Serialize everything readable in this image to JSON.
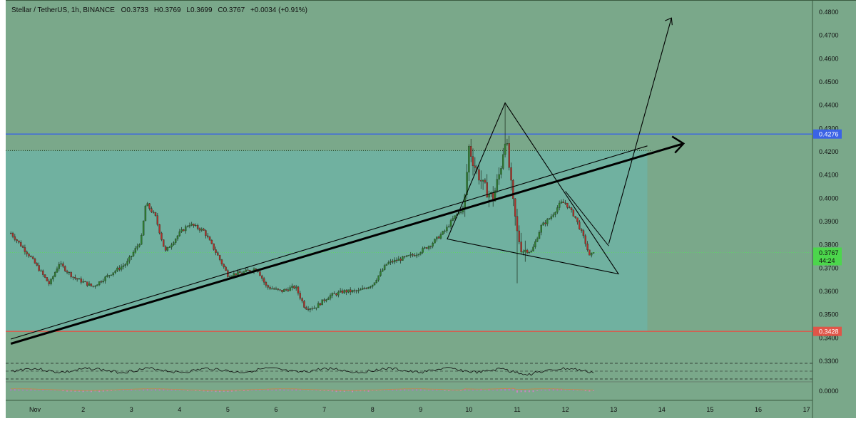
{
  "header": {
    "symbol": "Stellar / TetherUS, 1h, BINANCE",
    "open": "O0.3733",
    "high": "H0.3769",
    "low": "L0.3699",
    "close": "C0.3767",
    "change": "+0.0034 (+0.91%)"
  },
  "colors": {
    "background": "#7aa88a",
    "demand_zone": "#6fb3a3",
    "candle_up": "#2f7d2f",
    "candle_down": "#b0302a",
    "resistance_line": "#3b63e6",
    "support_line": "#e05548",
    "last_price_bg": "#4cd64c",
    "dotted_high": "#1a3a1a",
    "dotted_price": "#5fd36a"
  },
  "chart_data": {
    "type": "candlestick",
    "x_tick_labels": [
      "Nov",
      "2",
      "3",
      "4",
      "5",
      "6",
      "7",
      "8",
      "9",
      "10",
      "11",
      "12",
      "13",
      "14",
      "15",
      "16",
      "17"
    ],
    "x_tick_days": [
      1,
      2,
      3,
      4,
      5,
      6,
      7,
      8,
      9,
      10,
      11,
      12,
      13,
      14,
      15,
      16,
      17
    ],
    "y_tick_labels": [
      "0.4800",
      "0.4700",
      "0.4600",
      "0.4500",
      "0.4400",
      "0.4300",
      "0.4200",
      "0.4100",
      "0.4000",
      "0.3900",
      "0.3800",
      "0.3700",
      "0.3600",
      "0.3500",
      "0.3400",
      "0.3300"
    ],
    "y_range": [
      0.33,
      0.482
    ],
    "x_range_days": [
      0.5,
      17.0
    ],
    "price_path": [
      [
        0.5,
        0.385
      ],
      [
        0.9,
        0.375
      ],
      [
        1.3,
        0.363
      ],
      [
        1.5,
        0.372
      ],
      [
        1.8,
        0.366
      ],
      [
        2.2,
        0.362
      ],
      [
        2.6,
        0.368
      ],
      [
        2.9,
        0.372
      ],
      [
        3.2,
        0.382
      ],
      [
        3.3,
        0.398
      ],
      [
        3.5,
        0.392
      ],
      [
        3.7,
        0.377
      ],
      [
        4.0,
        0.385
      ],
      [
        4.2,
        0.389
      ],
      [
        4.5,
        0.386
      ],
      [
        4.8,
        0.375
      ],
      [
        5.0,
        0.367
      ],
      [
        5.3,
        0.368
      ],
      [
        5.6,
        0.37
      ],
      [
        5.8,
        0.362
      ],
      [
        6.1,
        0.36
      ],
      [
        6.4,
        0.362
      ],
      [
        6.6,
        0.353
      ],
      [
        6.8,
        0.353
      ],
      [
        7.1,
        0.358
      ],
      [
        7.4,
        0.36
      ],
      [
        7.7,
        0.36
      ],
      [
        8.0,
        0.363
      ],
      [
        8.3,
        0.372
      ],
      [
        8.6,
        0.374
      ],
      [
        8.9,
        0.376
      ],
      [
        9.2,
        0.38
      ],
      [
        9.5,
        0.386
      ],
      [
        9.7,
        0.392
      ],
      [
        9.9,
        0.396
      ],
      [
        10.0,
        0.422
      ],
      [
        10.1,
        0.415
      ],
      [
        10.3,
        0.405
      ],
      [
        10.5,
        0.4
      ],
      [
        10.65,
        0.412
      ],
      [
        10.75,
        0.426
      ],
      [
        10.8,
        0.42
      ],
      [
        10.9,
        0.4
      ],
      [
        11.0,
        0.385
      ],
      [
        11.1,
        0.378
      ],
      [
        11.3,
        0.377
      ],
      [
        11.5,
        0.388
      ],
      [
        11.7,
        0.392
      ],
      [
        11.9,
        0.398
      ],
      [
        12.0,
        0.398
      ],
      [
        12.2,
        0.392
      ],
      [
        12.4,
        0.382
      ],
      [
        12.5,
        0.375
      ],
      [
        12.6,
        0.3767
      ]
    ],
    "extreme_wicks": [
      {
        "day": 10.75,
        "high": 0.4405
      },
      {
        "day": 11.0,
        "low": 0.3635
      }
    ],
    "horizontal_levels": [
      {
        "price": 0.4276,
        "label": "0.4276",
        "color": "#3b63e6",
        "style": "solid"
      },
      {
        "price": 0.3428,
        "label": "0.3428",
        "color": "#e05548",
        "style": "solid"
      },
      {
        "price": 0.4205,
        "style": "dotted"
      },
      {
        "price": 0.3767,
        "style": "dotted"
      }
    ],
    "last_price": {
      "label": "0.3767",
      "countdown": "44:24"
    },
    "drawings": {
      "main_trendline": [
        [
          0.5,
          0.3375
        ],
        [
          14.45,
          0.4235
        ]
      ],
      "thin_trendline": [
        [
          0.5,
          0.3395
        ],
        [
          13.7,
          0.4225
        ]
      ],
      "triangle": [
        [
          10.75,
          0.441
        ],
        [
          13.1,
          0.3675
        ],
        [
          9.55,
          0.3825
        ]
      ],
      "triangle_inner_wedge": [
        [
          12.0,
          0.403
        ],
        [
          12.9,
          0.3795
        ]
      ],
      "projection_arrow": [
        [
          12.9,
          0.3805
        ],
        [
          14.2,
          0.4775
        ]
      ]
    },
    "demand_zone": {
      "top": 0.4205,
      "bottom": 0.3428
    }
  }
}
